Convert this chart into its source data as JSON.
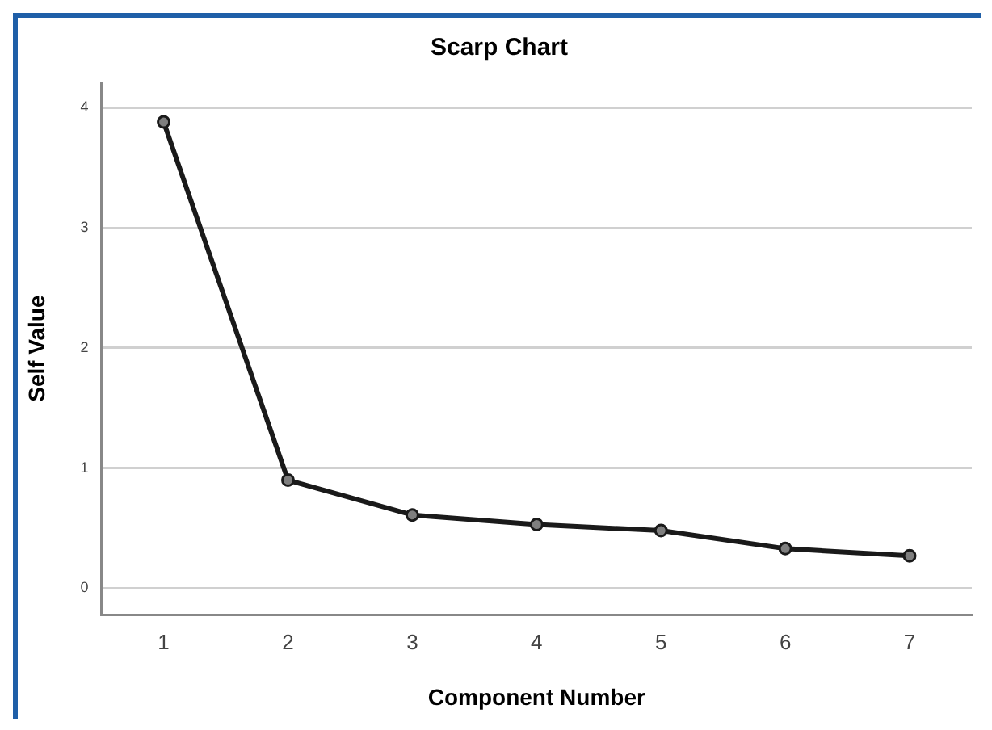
{
  "chart_data": {
    "type": "line",
    "title": "Scarp Chart",
    "xlabel": "Component Number",
    "ylabel": "Self Value",
    "categories": [
      "1",
      "2",
      "3",
      "4",
      "5",
      "6",
      "7"
    ],
    "series": [
      {
        "color": "#1a1a1a",
        "values": [
          3.88,
          0.9,
          0.61,
          0.53,
          0.48,
          0.33,
          0.27
        ]
      }
    ],
    "ylim": [
      -0.22,
      4.21
    ],
    "yticks": [
      0,
      1,
      2,
      3,
      4
    ],
    "grid": "y",
    "legend": false,
    "marker": "circle",
    "line_style": "solid"
  }
}
